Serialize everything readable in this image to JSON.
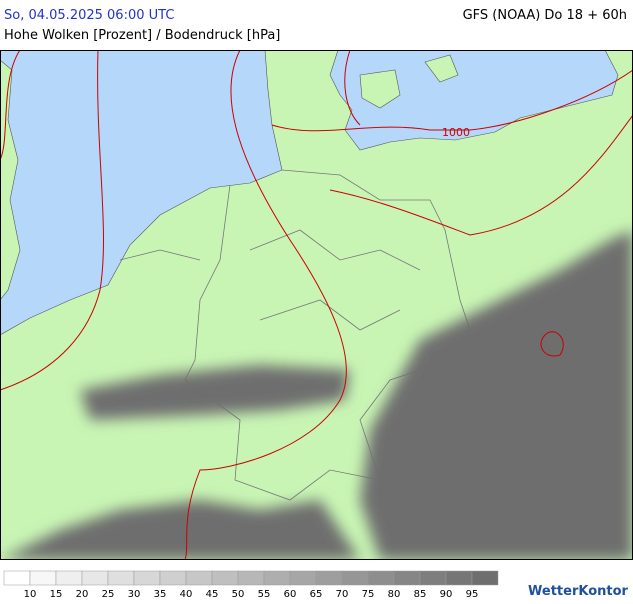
{
  "header": {
    "datetime": "So, 04.05.2025 06:00 UTC",
    "model": "GFS (NOAA) Do 18 + 60h",
    "subtitle": "Hohe Wolken [Prozent] / Bodendruck [hPa]"
  },
  "map": {
    "isobar_label": "1000"
  },
  "legend": {
    "labels": [
      "10",
      "15",
      "20",
      "25",
      "30",
      "35",
      "40",
      "45",
      "50",
      "55",
      "60",
      "65",
      "70",
      "75",
      "80",
      "85",
      "90",
      "95"
    ]
  },
  "logo": "WetterKontor"
}
